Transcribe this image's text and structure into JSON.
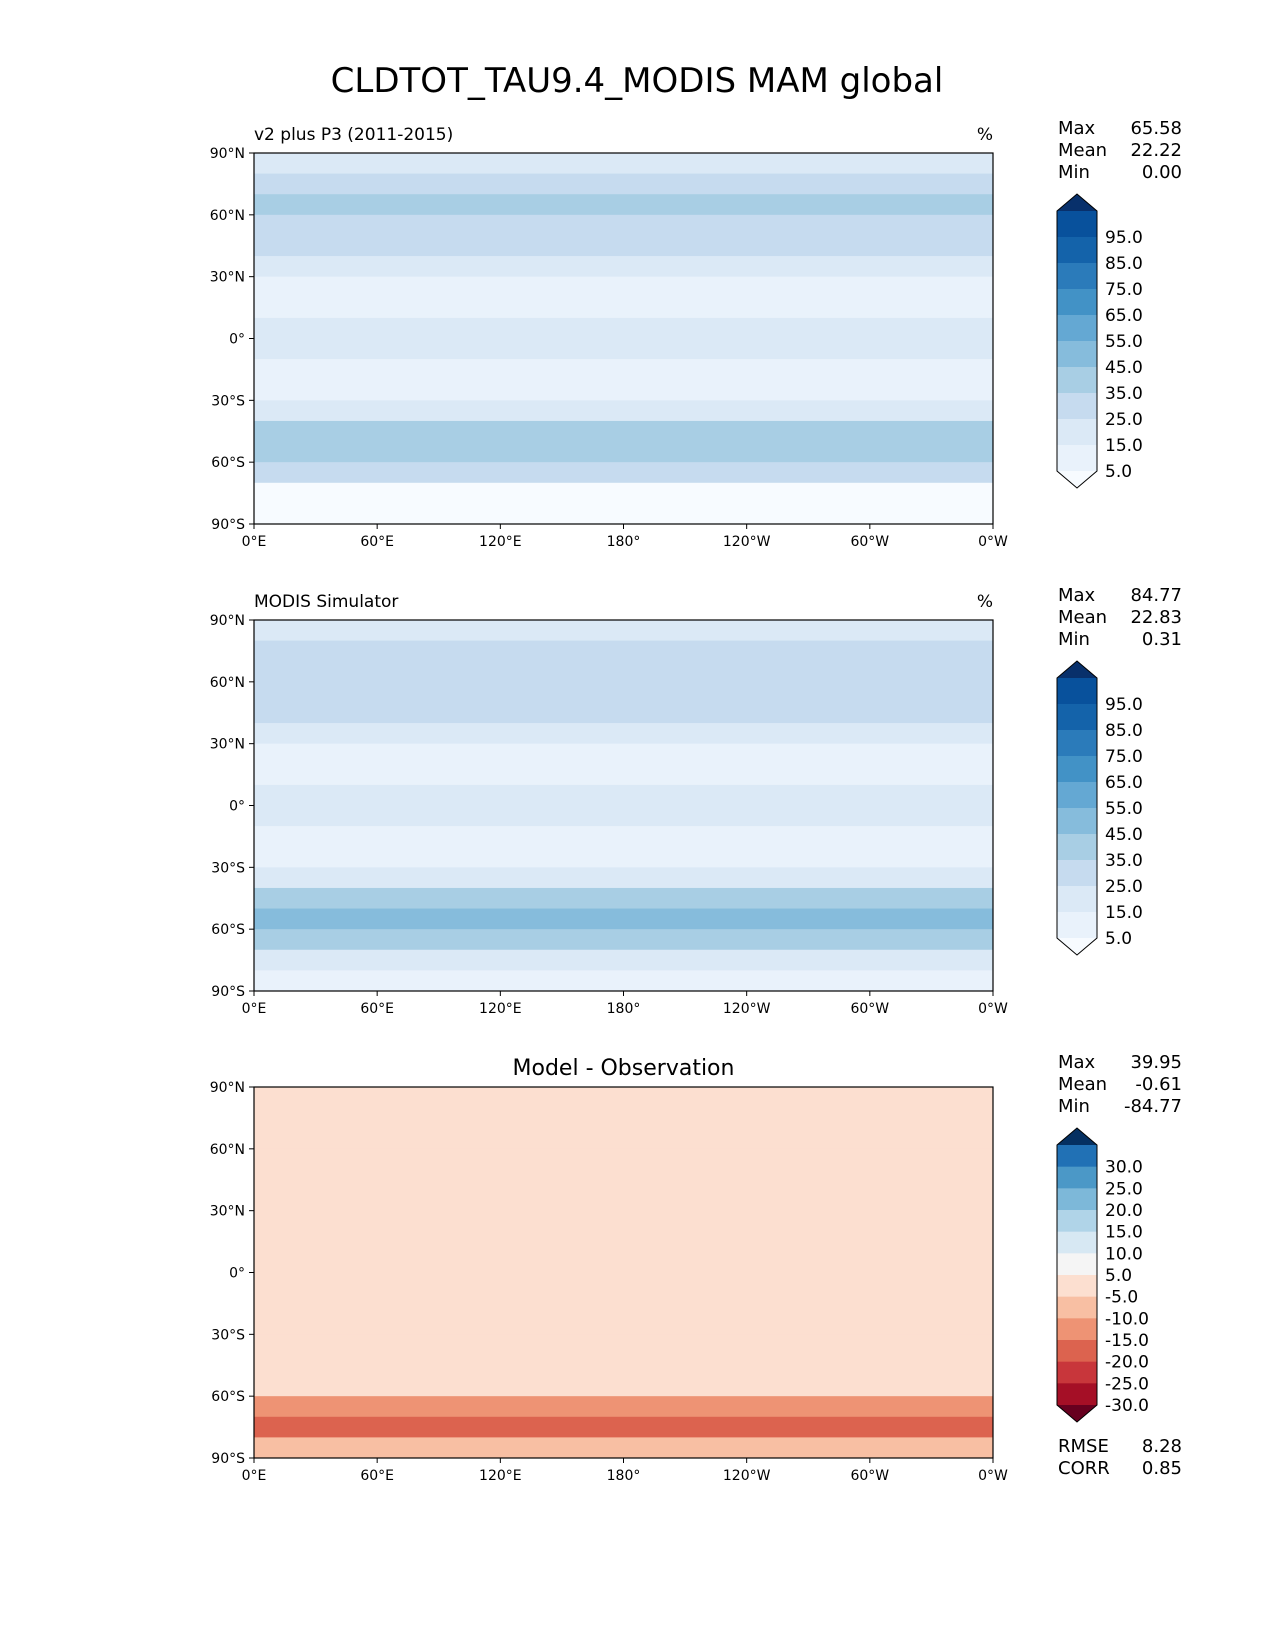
{
  "chart_data": {
    "type": "heatmap",
    "title": "CLDTOT_TAU9.4_MODIS MAM global",
    "x_tick_labels": [
      "0°E",
      "60°E",
      "120°E",
      "180°",
      "120°W",
      "60°W",
      "0°W"
    ],
    "y_tick_labels": [
      "90°N",
      "60°N",
      "30°N",
      "0°",
      "30°S",
      "60°S",
      "90°S"
    ],
    "xlim": [
      0,
      360
    ],
    "ylim": [
      -90,
      90
    ],
    "panels": [
      {
        "id": "test",
        "title_left": "v2 plus P3 (2011-2015)",
        "title_right": "%",
        "title_center": "",
        "stats": [
          {
            "label": "Max",
            "value": "65.58"
          },
          {
            "label": "Mean",
            "value": "22.22"
          },
          {
            "label": "Min",
            "value": "0.00"
          }
        ],
        "colorbar": {
          "levels": [
            5.0,
            15.0,
            25.0,
            35.0,
            45.0,
            55.0,
            65.0,
            75.0,
            85.0,
            95.0
          ],
          "tick_labels": [
            "95.0",
            "85.0",
            "75.0",
            "65.0",
            "55.0",
            "45.0",
            "35.0",
            "25.0",
            "15.0",
            "5.0"
          ],
          "colors": [
            "#f7fbff",
            "#e9f2fb",
            "#dbe9f6",
            "#c6dbef",
            "#a8cee4",
            "#86bcdc",
            "#64a8d3",
            "#4292c6",
            "#2b7bba",
            "#1463aa",
            "#08519c",
            "#08306b"
          ]
        },
        "zonal_mean_profile": [
          {
            "lat": 85,
            "value": 20
          },
          {
            "lat": 75,
            "value": 32
          },
          {
            "lat": 65,
            "value": 35
          },
          {
            "lat": 55,
            "value": 34
          },
          {
            "lat": 45,
            "value": 28
          },
          {
            "lat": 35,
            "value": 18
          },
          {
            "lat": 25,
            "value": 10
          },
          {
            "lat": 15,
            "value": 12
          },
          {
            "lat": 5,
            "value": 20
          },
          {
            "lat": -5,
            "value": 16
          },
          {
            "lat": -15,
            "value": 10
          },
          {
            "lat": -25,
            "value": 12
          },
          {
            "lat": -35,
            "value": 22
          },
          {
            "lat": -45,
            "value": 40
          },
          {
            "lat": -55,
            "value": 42
          },
          {
            "lat": -65,
            "value": 30
          },
          {
            "lat": -75,
            "value": 4
          },
          {
            "lat": -85,
            "value": 1
          }
        ]
      },
      {
        "id": "reference",
        "title_left": "MODIS Simulator",
        "title_right": "%",
        "title_center": "",
        "stats": [
          {
            "label": "Max",
            "value": "84.77"
          },
          {
            "label": "Mean",
            "value": "22.83"
          },
          {
            "label": "Min",
            "value": "0.31"
          }
        ],
        "colorbar": {
          "levels": [
            5.0,
            15.0,
            25.0,
            35.0,
            45.0,
            55.0,
            65.0,
            75.0,
            85.0,
            95.0
          ],
          "tick_labels": [
            "95.0",
            "85.0",
            "75.0",
            "65.0",
            "55.0",
            "45.0",
            "35.0",
            "25.0",
            "15.0",
            "5.0"
          ],
          "colors": [
            "#f7fbff",
            "#e9f2fb",
            "#dbe9f6",
            "#c6dbef",
            "#a8cee4",
            "#86bcdc",
            "#64a8d3",
            "#4292c6",
            "#2b7bba",
            "#1463aa",
            "#08519c",
            "#08306b"
          ]
        },
        "zonal_mean_profile": [
          {
            "lat": 85,
            "value": 20
          },
          {
            "lat": 75,
            "value": 30
          },
          {
            "lat": 65,
            "value": 34
          },
          {
            "lat": 55,
            "value": 33
          },
          {
            "lat": 45,
            "value": 26
          },
          {
            "lat": 35,
            "value": 18
          },
          {
            "lat": 25,
            "value": 10
          },
          {
            "lat": 15,
            "value": 12
          },
          {
            "lat": 5,
            "value": 20
          },
          {
            "lat": -5,
            "value": 16
          },
          {
            "lat": -15,
            "value": 9
          },
          {
            "lat": -25,
            "value": 11
          },
          {
            "lat": -35,
            "value": 22
          },
          {
            "lat": -45,
            "value": 40
          },
          {
            "lat": -55,
            "value": 46
          },
          {
            "lat": -65,
            "value": 44
          },
          {
            "lat": -75,
            "value": 22
          },
          {
            "lat": -85,
            "value": 12
          }
        ]
      },
      {
        "id": "diff",
        "title_left": "",
        "title_right": "",
        "title_center": "Model - Observation",
        "stats": [
          {
            "label": "Max",
            "value": "39.95"
          },
          {
            "label": "Mean",
            "value": "-0.61"
          },
          {
            "label": "Min",
            "value": "-84.77"
          }
        ],
        "extra_stats": [
          {
            "label": "RMSE",
            "value": "8.28"
          },
          {
            "label": "CORR",
            "value": "0.85"
          }
        ],
        "colorbar": {
          "levels": [
            -30.0,
            -25.0,
            -20.0,
            -15.0,
            -10.0,
            -5.0,
            5.0,
            10.0,
            15.0,
            20.0,
            25.0,
            30.0
          ],
          "tick_labels": [
            "30.0",
            "25.0",
            "20.0",
            "15.0",
            "10.0",
            "5.0",
            "-5.0",
            "-10.0",
            "-15.0",
            "-20.0",
            "-25.0",
            "-30.0"
          ],
          "colors": [
            "#67001f",
            "#a50f26",
            "#c8363b",
            "#dc634f",
            "#ee9374",
            "#f8bfa3",
            "#fcdfd0",
            "#f5f5f5",
            "#d7e8f3",
            "#b0d4e8",
            "#7db8d9",
            "#4b98c7",
            "#2171b5",
            "#053061"
          ]
        },
        "zonal_mean_profile": [
          {
            "lat": 85,
            "value": 0
          },
          {
            "lat": 75,
            "value": 1
          },
          {
            "lat": 65,
            "value": 1
          },
          {
            "lat": 55,
            "value": 1
          },
          {
            "lat": 45,
            "value": 1
          },
          {
            "lat": 35,
            "value": 0
          },
          {
            "lat": 25,
            "value": 0
          },
          {
            "lat": 15,
            "value": 0
          },
          {
            "lat": 5,
            "value": 0
          },
          {
            "lat": -5,
            "value": 0
          },
          {
            "lat": -15,
            "value": 1
          },
          {
            "lat": -25,
            "value": 1
          },
          {
            "lat": -35,
            "value": 0
          },
          {
            "lat": -45,
            "value": 1
          },
          {
            "lat": -55,
            "value": -3
          },
          {
            "lat": -65,
            "value": -14
          },
          {
            "lat": -75,
            "value": -18
          },
          {
            "lat": -85,
            "value": -10
          }
        ]
      }
    ]
  }
}
